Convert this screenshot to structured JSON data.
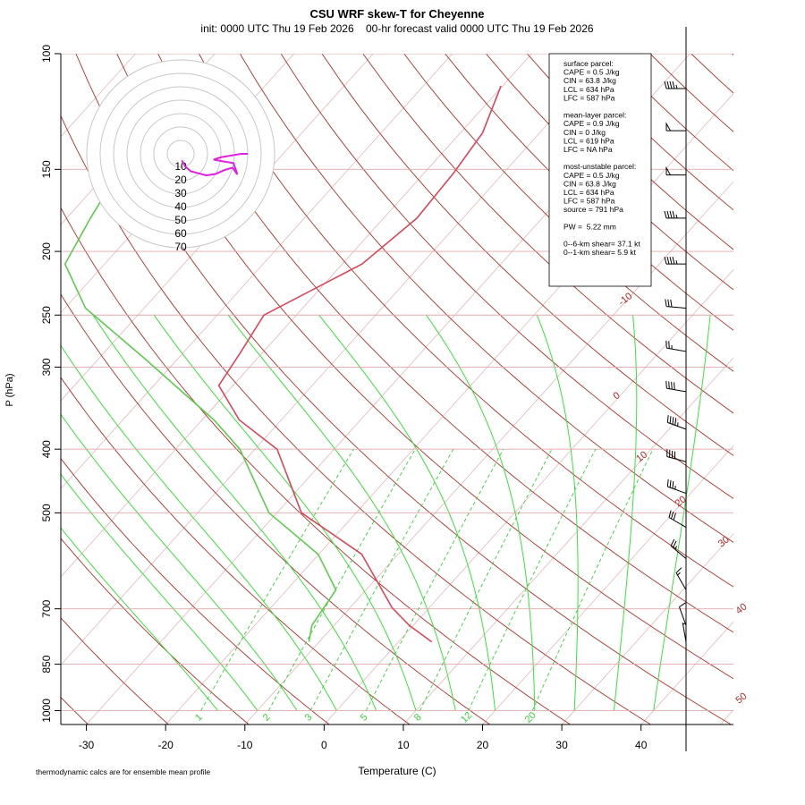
{
  "chart_data": {
    "type": "skew-t",
    "title": "CSU WRF skew-T for Cheyenne",
    "subtitle": "init: 0000 UTC Thu 19 Feb 2026    00-hr forecast valid 0000 UTC Thu 19 Feb 2026",
    "xlabel": "Temperature (C)",
    "ylabel": "P (hPa)",
    "footnote": "thermodynamic calcs are for ensemble mean profile",
    "xlim": [
      -33,
      45
    ],
    "xticks": [
      -30,
      -20,
      -10,
      0,
      10,
      20,
      30,
      40
    ],
    "ylim": [
      1050,
      100
    ],
    "log_y": true,
    "yticks": [
      100,
      150,
      200,
      250,
      300,
      400,
      500,
      700,
      850,
      1000
    ],
    "series": [
      {
        "color": "#d9475a",
        "pressure": [
          786,
          742,
          697,
          578,
          500,
          400,
          361,
          320,
          285,
          250,
          209,
          178,
          152,
          132,
          112
        ],
        "values": [
          4.2,
          -0.5,
          -4.7,
          -14.6,
          -26.9,
          -37.2,
          -45.3,
          -51.8,
          -52.8,
          -54.1,
          -47.5,
          -45.8,
          -46.3,
          -47.2,
          -50.2
        ]
      },
      {
        "color": "#5ecb4e",
        "pressure": [
          786,
          742,
          655,
          578,
          500,
          400,
          361,
          290,
          244,
          209,
          178,
          165
        ],
        "values": [
          -11.3,
          -12.8,
          -13.8,
          -20.1,
          -31.0,
          -41.9,
          -48.5,
          -64.5,
          -77.4,
          -85.0,
          -87.0,
          -87.8
        ]
      }
    ],
    "isotherm_labels": [
      -10,
      0,
      10,
      20,
      30,
      40,
      50
    ],
    "mixing_ratio_labels": [
      1,
      2,
      3,
      5,
      8,
      12,
      20
    ],
    "winds": {
      "pressure": [
        113,
        131,
        153,
        178,
        209,
        244,
        284,
        327,
        373,
        418,
        467,
        526,
        587,
        655,
        742,
        786
      ],
      "direction": [
        270,
        270,
        270,
        270,
        270,
        275,
        280,
        280,
        290,
        285,
        290,
        300,
        310,
        330,
        340,
        350
      ],
      "speed": [
        45,
        50,
        50,
        45,
        45,
        30,
        25,
        40,
        45,
        40,
        35,
        30,
        25,
        15,
        10,
        5
      ]
    },
    "hodograph": {
      "ring_labels": [
        10,
        20,
        30,
        40,
        50,
        60,
        70
      ]
    },
    "info_box": [
      [
        "surface parcel:",
        "CAPE = 0.5 J/kg",
        "CIN = 63.8 J/kg",
        "LCL = 634 hPa",
        "LFC = 587 hPa"
      ],
      [
        "mean-layer parcel:",
        "CAPE = 0.9 J/kg",
        "CIN = 0 J/kg",
        "LCL = 619 hPa",
        "LFC = NA hPa"
      ],
      [
        "most-unstable parcel:",
        "CAPE = 0.5 J/kg",
        "CIN = 63.8 J/kg",
        "LCL = 634 hPa",
        "LFC = 587 hPa",
        "source = 791 hPa"
      ],
      [
        "PW =  5.22 mm"
      ],
      [
        "0--6-km shear= 37.1 kt",
        "0--1-km shear= 5.9 kt"
      ]
    ]
  }
}
